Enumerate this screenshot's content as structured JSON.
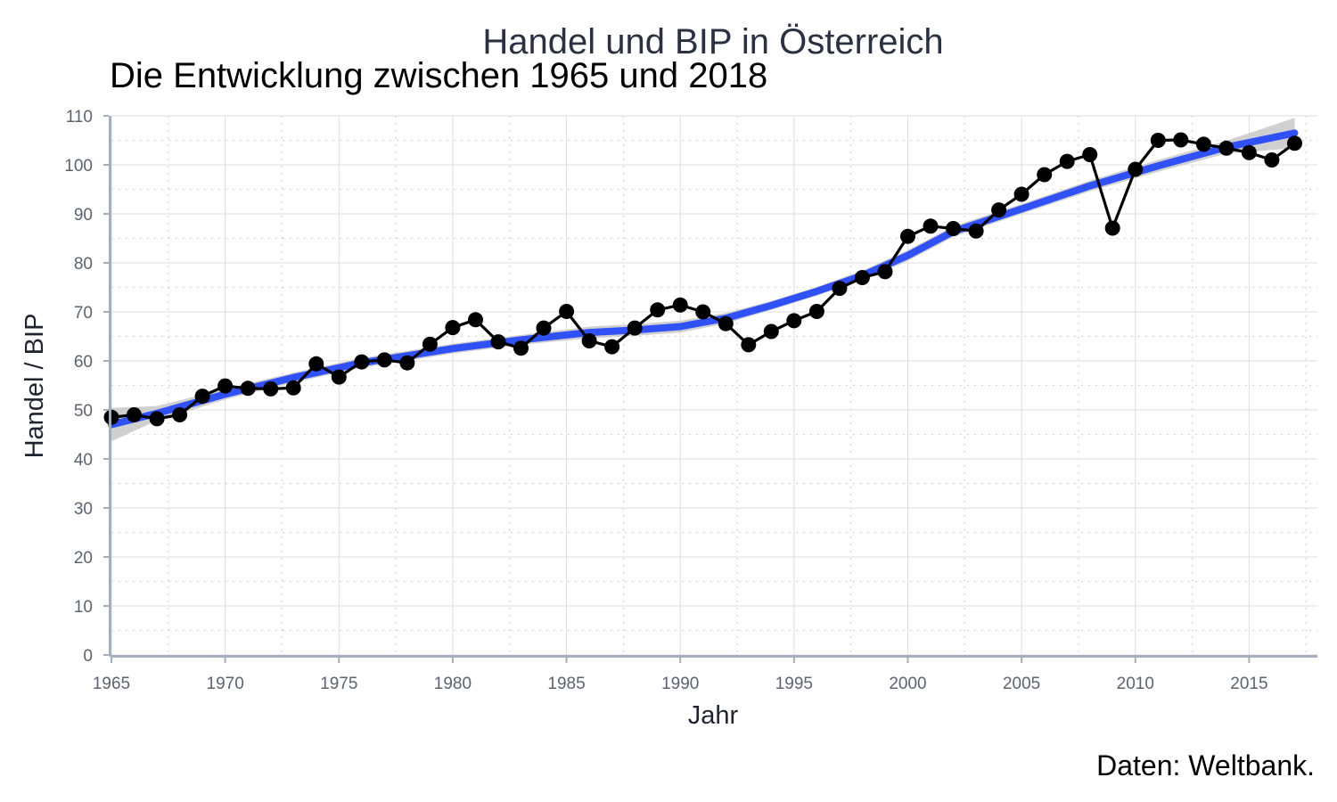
{
  "chart_data": {
    "type": "line",
    "title": "Handel und BIP in Österreich",
    "subtitle": "Die Entwicklung zwischen 1965 und 2018",
    "xlabel": "Jahr",
    "ylabel": "Handel / BIP",
    "caption": "Daten: Weltbank.",
    "xlim": [
      1965,
      2018
    ],
    "ylim": [
      0,
      110
    ],
    "x_ticks": [
      1965,
      1970,
      1975,
      1980,
      1985,
      1990,
      1995,
      2000,
      2005,
      2010,
      2015
    ],
    "y_ticks": [
      0,
      10,
      20,
      30,
      40,
      50,
      60,
      70,
      80,
      90,
      100,
      110
    ],
    "grid": true,
    "series": [
      {
        "kind": "line+points",
        "color": "#000000",
        "x": [
          1965,
          1966,
          1967,
          1968,
          1969,
          1970,
          1971,
          1972,
          1973,
          1974,
          1975,
          1976,
          1977,
          1978,
          1979,
          1980,
          1981,
          1982,
          1983,
          1984,
          1985,
          1986,
          1987,
          1988,
          1989,
          1990,
          1991,
          1992,
          1993,
          1994,
          1995,
          1996,
          1997,
          1998,
          1999,
          2000,
          2001,
          2002,
          2003,
          2004,
          2005,
          2006,
          2007,
          2008,
          2009,
          2010,
          2011,
          2012,
          2013,
          2014,
          2015,
          2016,
          2017
        ],
        "y": [
          48.5,
          49.0,
          48.2,
          49.0,
          52.8,
          54.9,
          54.4,
          54.3,
          54.5,
          59.4,
          56.7,
          59.8,
          60.2,
          59.6,
          63.4,
          66.8,
          68.4,
          63.9,
          62.6,
          66.7,
          70.1,
          64.1,
          62.9,
          66.7,
          70.4,
          71.4,
          70.0,
          67.6,
          63.3,
          66.0,
          68.2,
          70.1,
          74.8,
          77.0,
          78.2,
          85.4,
          87.5,
          87.0,
          86.5,
          90.8,
          94.0,
          98.0,
          100.7,
          102.1,
          87.1,
          99.1,
          105.0,
          105.1,
          104.2,
          103.4,
          102.5,
          101.0,
          104.4
        ]
      },
      {
        "kind": "smooth-trend",
        "color": "#3050f8",
        "band_color": "#c8c8c8",
        "x": [
          1965,
          1967,
          1970,
          1973,
          1976,
          1980,
          1983,
          1986,
          1988,
          1990,
          1992,
          1994,
          1996,
          1998,
          2000,
          2002,
          2005,
          2008,
          2011,
          2014,
          2017
        ],
        "y": [
          47.0,
          49.3,
          53.2,
          56.6,
          59.6,
          62.5,
          64.3,
          65.8,
          66.3,
          67.0,
          68.7,
          71.3,
          74.2,
          77.4,
          81.5,
          86.4,
          91.0,
          95.7,
          99.8,
          103.6,
          106.5
        ],
        "lower": [
          43.6,
          47.8,
          52.1,
          55.6,
          58.6,
          61.5,
          63.3,
          64.6,
          65.1,
          65.8,
          67.6,
          70.4,
          73.3,
          76.4,
          80.4,
          85.3,
          90.0,
          94.6,
          98.6,
          102.3,
          103.4
        ],
        "upper": [
          50.4,
          50.8,
          54.3,
          57.6,
          60.6,
          63.5,
          65.3,
          67.0,
          67.5,
          68.2,
          69.8,
          72.2,
          75.1,
          78.4,
          82.6,
          87.5,
          92.0,
          96.8,
          101.0,
          104.9,
          109.6
        ]
      }
    ]
  }
}
